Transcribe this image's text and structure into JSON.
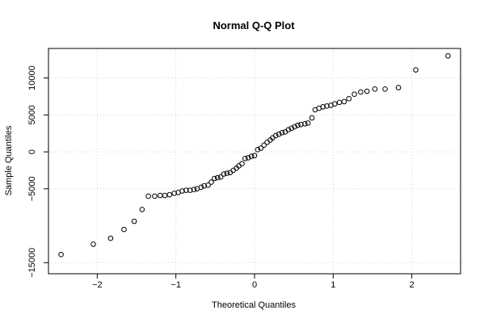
{
  "chart_data": {
    "type": "scatter",
    "title": "Normal Q-Q Plot",
    "xlabel": "Theoretical Quantiles",
    "ylabel": "Sample Quantiles",
    "xlim": [
      -2.62,
      2.62
    ],
    "ylim": [
      -16500,
      14000
    ],
    "xticks": [
      -2,
      -1,
      0,
      1,
      2
    ],
    "xtick_labels": [
      "−2",
      "−1",
      "0",
      "1",
      "2"
    ],
    "yticks": [
      -15000,
      -5000,
      0,
      5000,
      10000
    ],
    "ytick_labels": [
      "−15000",
      "−5000",
      "0",
      "5000",
      "10000"
    ],
    "grid": true,
    "marker": "open-circle",
    "colors": {
      "points": "#000000",
      "grid": "#d3d3d3",
      "axis": "#000000"
    },
    "points": [
      [
        -2.46,
        -13900
      ],
      [
        -2.05,
        -12500
      ],
      [
        -1.83,
        -11700
      ],
      [
        -1.66,
        -10500
      ],
      [
        -1.53,
        -9400
      ],
      [
        -1.43,
        -7800
      ],
      [
        -1.35,
        -6000
      ],
      [
        -1.27,
        -6000
      ],
      [
        -1.2,
        -5900
      ],
      [
        -1.14,
        -5900
      ],
      [
        -1.08,
        -5800
      ],
      [
        -1.02,
        -5600
      ],
      [
        -0.97,
        -5500
      ],
      [
        -0.92,
        -5300
      ],
      [
        -0.87,
        -5200
      ],
      [
        -0.82,
        -5200
      ],
      [
        -0.77,
        -5100
      ],
      [
        -0.73,
        -5000
      ],
      [
        -0.68,
        -4800
      ],
      [
        -0.64,
        -4600
      ],
      [
        -0.59,
        -4500
      ],
      [
        -0.55,
        -4100
      ],
      [
        -0.51,
        -3600
      ],
      [
        -0.47,
        -3500
      ],
      [
        -0.43,
        -3400
      ],
      [
        -0.39,
        -3000
      ],
      [
        -0.35,
        -2900
      ],
      [
        -0.31,
        -2800
      ],
      [
        -0.27,
        -2500
      ],
      [
        -0.23,
        -2200
      ],
      [
        -0.2,
        -1900
      ],
      [
        -0.16,
        -1600
      ],
      [
        -0.12,
        -900
      ],
      [
        -0.08,
        -800
      ],
      [
        -0.04,
        -600
      ],
      [
        0.0,
        -500
      ],
      [
        0.04,
        300
      ],
      [
        0.08,
        500
      ],
      [
        0.12,
        900
      ],
      [
        0.16,
        1300
      ],
      [
        0.2,
        1600
      ],
      [
        0.23,
        1900
      ],
      [
        0.27,
        2200
      ],
      [
        0.31,
        2400
      ],
      [
        0.35,
        2600
      ],
      [
        0.39,
        2700
      ],
      [
        0.43,
        3000
      ],
      [
        0.47,
        3200
      ],
      [
        0.51,
        3400
      ],
      [
        0.55,
        3600
      ],
      [
        0.59,
        3700
      ],
      [
        0.64,
        3800
      ],
      [
        0.68,
        3900
      ],
      [
        0.73,
        4600
      ],
      [
        0.77,
        5700
      ],
      [
        0.82,
        5900
      ],
      [
        0.87,
        6100
      ],
      [
        0.92,
        6200
      ],
      [
        0.97,
        6300
      ],
      [
        1.02,
        6500
      ],
      [
        1.08,
        6700
      ],
      [
        1.14,
        6800
      ],
      [
        1.2,
        7200
      ],
      [
        1.27,
        7800
      ],
      [
        1.35,
        8100
      ],
      [
        1.43,
        8200
      ],
      [
        1.53,
        8500
      ],
      [
        1.66,
        8500
      ],
      [
        1.83,
        8700
      ],
      [
        2.05,
        11100
      ],
      [
        2.46,
        13000
      ]
    ]
  }
}
